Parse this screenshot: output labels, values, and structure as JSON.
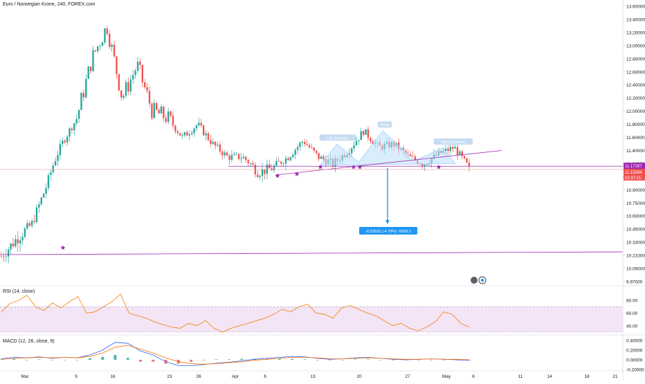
{
  "header": {
    "title": "Euro / Norwegian Krone, 240, FOREX.com"
  },
  "colors": {
    "up": "#26a69a",
    "down": "#ef5350",
    "trendline": "#9c27b0",
    "pattern_fill": "#bbdefb",
    "pattern_label_bg": "#c5dcf2",
    "annotation_bg": "#2196f3",
    "rsi_line": "#f57c00",
    "rsi_band": "#f3e5f5",
    "macd_line": "#2962ff",
    "signal_line": "#ff6d00",
    "price_tag_purple": "#9c27b0",
    "price_tag_red": "#ef5350"
  },
  "chart_data": [
    {
      "type": "candlestick",
      "title": "Euro / Norwegian Krone, 240, FOREX.com",
      "y_ticks": [
        "13.60000",
        "13.40000",
        "13.20000",
        "13.00000",
        "12.80000",
        "12.60000",
        "12.40000",
        "12.20000",
        "12.00000",
        "11.80000",
        "11.60000",
        "11.40000",
        "11.20000",
        "11.05000",
        "10.90000",
        "10.75000",
        "10.60000",
        "10.45000",
        "10.33000",
        "10.21000",
        "10.09000",
        "9.97000"
      ],
      "x_ticks": [
        "Mar",
        "9",
        "16",
        "23",
        "26",
        "Apr",
        "6",
        "13",
        "20",
        "27",
        "May",
        "6",
        "11",
        "14",
        "18",
        "21"
      ],
      "close_path": [
        [
          "Mar",
          10.2
        ],
        [
          "9",
          10.36
        ],
        [
          "9",
          10.5
        ],
        [
          "9",
          10.95
        ],
        [
          "16",
          11.5
        ],
        [
          "16",
          11.9
        ],
        [
          "16",
          12.8
        ],
        [
          "16",
          13.3
        ],
        [
          "23",
          12.2
        ],
        [
          "23",
          12.7
        ],
        [
          "23",
          12.0
        ],
        [
          "26",
          11.9
        ],
        [
          "26",
          11.6
        ],
        [
          "26",
          11.8
        ],
        [
          "Apr",
          11.5
        ],
        [
          "Apr",
          11.3
        ],
        [
          "6",
          11.3
        ],
        [
          "6",
          11.1
        ],
        [
          "6",
          11.15
        ],
        [
          "13",
          11.3
        ],
        [
          "13",
          11.55
        ],
        [
          "13",
          11.3
        ],
        [
          "20",
          11.2
        ],
        [
          "20",
          11.4
        ],
        [
          "20",
          11.7
        ],
        [
          "20",
          11.45
        ],
        [
          "27",
          11.5
        ],
        [
          "27",
          11.3
        ],
        [
          "27",
          11.2
        ],
        [
          "May",
          11.35
        ],
        [
          "May",
          11.45
        ],
        [
          "May",
          11.13
        ]
      ],
      "pattern": {
        "labels": [
          "Left Shoulder",
          "Head",
          "Right Shoulder"
        ]
      },
      "stars": 9,
      "price_tags": [
        "11.17297",
        "11.13334",
        "02:37:21"
      ],
      "measure_label": "-0.52532 (-4.70%) -5253.2"
    },
    {
      "type": "line",
      "title": "RSI (14, close)",
      "y_ticks": [
        "80.00",
        "60.00",
        "40.00"
      ],
      "values": [
        62,
        75,
        80,
        88,
        70,
        64,
        76,
        68,
        78,
        86,
        60,
        62,
        70,
        78,
        90,
        60,
        56,
        52,
        46,
        42,
        38,
        36,
        44,
        40,
        48,
        36,
        30,
        36,
        40,
        44,
        48,
        52,
        58,
        66,
        62,
        70,
        74,
        60,
        58,
        52,
        68,
        72,
        66,
        60,
        56,
        48,
        40,
        44,
        36,
        32,
        38,
        46,
        62,
        58,
        44,
        38
      ],
      "upper": 70,
      "lower": 30
    },
    {
      "type": "histogram+line",
      "title": "MACD (12, 26, close, 9)",
      "y_ticks": [
        "0.40000",
        "0.20000",
        "0.00000",
        "-0.20000"
      ],
      "macd": [
        0.02,
        0.05,
        0.04,
        0.06,
        0.03,
        0.05,
        0.04,
        0.1,
        0.2,
        0.36,
        0.34,
        0.18,
        0.1,
        -0.04,
        -0.12,
        -0.12,
        -0.1,
        -0.07,
        -0.05,
        -0.02,
        0.01,
        0.03,
        0.05,
        0.07,
        0.06,
        0.03,
        0.01,
        0.02,
        0.04,
        0.05,
        0.03,
        0.01,
        0.0,
        0.01,
        0.02,
        0.01,
        0.0,
        -0.01
      ],
      "signal": [
        0.01,
        0.03,
        0.04,
        0.05,
        0.04,
        0.05,
        0.04,
        0.07,
        0.14,
        0.26,
        0.3,
        0.22,
        0.14,
        0.04,
        -0.04,
        -0.08,
        -0.09,
        -0.08,
        -0.06,
        -0.04,
        -0.01,
        0.01,
        0.03,
        0.05,
        0.05,
        0.04,
        0.02,
        0.02,
        0.03,
        0.04,
        0.03,
        0.02,
        0.01,
        0.01,
        0.02,
        0.01,
        0.01,
        0.0
      ]
    }
  ]
}
